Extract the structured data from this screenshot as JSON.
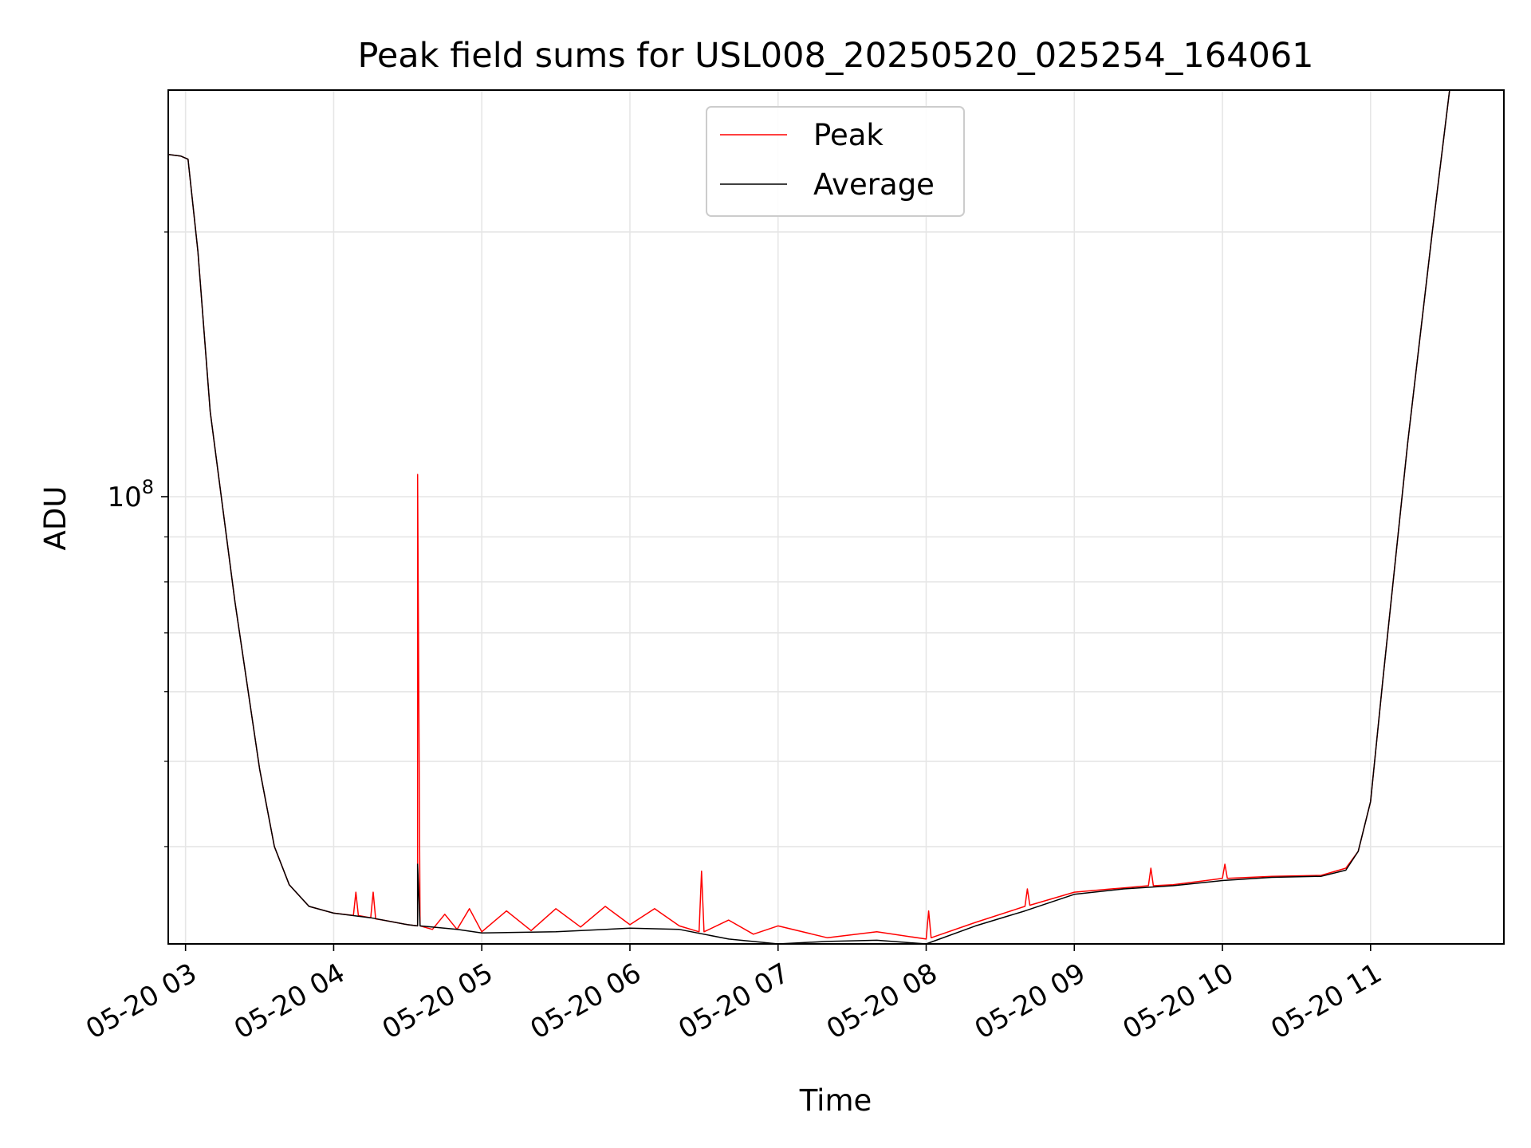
{
  "chart_data": {
    "type": "line",
    "title": "Peak field sums for USL008_20250520_025254_164061",
    "xlabel": "Time",
    "ylabel": "ADU",
    "y_scale": "log",
    "xlim": [
      "2025-05-20 02:53",
      "2025-05-20 11:54"
    ],
    "ylim": [
      31000000,
      290000000
    ],
    "x_ticks": [
      "05-20 03",
      "05-20 04",
      "05-20 05",
      "05-20 06",
      "05-20 07",
      "05-20 08",
      "05-20 09",
      "05-20 10",
      "05-20 11"
    ],
    "y_ticks": [
      {
        "value": 100000000,
        "base": "10",
        "exponent": "8"
      }
    ],
    "y_minor_ticks": [
      40000000,
      50000000,
      60000000,
      70000000,
      80000000,
      90000000,
      200000000
    ],
    "grid": true,
    "legend_position": "upper center",
    "series": [
      {
        "name": "Peak",
        "color": "#ff0000",
        "points": [
          [
            "2025-05-20 02:53",
            245000000.0
          ],
          [
            "2025-05-20 02:58",
            244000000.0
          ],
          [
            "2025-05-20 03:01",
            242000000.0
          ],
          [
            "2025-05-20 03:05",
            190000000.0
          ],
          [
            "2025-05-20 03:10",
            125000000.0
          ],
          [
            "2025-05-20 03:20",
            76000000.0
          ],
          [
            "2025-05-20 03:30",
            49000000.0
          ],
          [
            "2025-05-20 03:36",
            40000000.0
          ],
          [
            "2025-05-20 03:42",
            36200000.0
          ],
          [
            "2025-05-20 03:50",
            34200000.0
          ],
          [
            "2025-05-20 04:00",
            33600000.0
          ],
          [
            "2025-05-20 04:08",
            33400000.0
          ],
          [
            "2025-05-20 04:09",
            35500000.0
          ],
          [
            "2025-05-20 04:10",
            33400000.0
          ],
          [
            "2025-05-20 04:15",
            33200000.0
          ],
          [
            "2025-05-20 04:16",
            35500000.0
          ],
          [
            "2025-05-20 04:17",
            33100000.0
          ],
          [
            "2025-05-20 04:20",
            33000000.0
          ],
          [
            "2025-05-20 04:25",
            32800000.0
          ],
          [
            "2025-05-20 04:30",
            32600000.0
          ],
          [
            "2025-05-20 04:34",
            32500000.0
          ],
          [
            "2025-05-20 04:34",
            106000000.0
          ],
          [
            "2025-05-20 04:35",
            32500000.0
          ],
          [
            "2025-05-20 04:40",
            32200000.0
          ],
          [
            "2025-05-20 04:45",
            33500000.0
          ],
          [
            "2025-05-20 04:50",
            32200000.0
          ],
          [
            "2025-05-20 04:55",
            34000000.0
          ],
          [
            "2025-05-20 05:00",
            32000000.0
          ],
          [
            "2025-05-20 05:10",
            33800000.0
          ],
          [
            "2025-05-20 05:20",
            32100000.0
          ],
          [
            "2025-05-20 05:30",
            34000000.0
          ],
          [
            "2025-05-20 05:40",
            32400000.0
          ],
          [
            "2025-05-20 05:50",
            34200000.0
          ],
          [
            "2025-05-20 06:00",
            32600000.0
          ],
          [
            "2025-05-20 06:10",
            34000000.0
          ],
          [
            "2025-05-20 06:20",
            32500000.0
          ],
          [
            "2025-05-20 06:28",
            32000000.0
          ],
          [
            "2025-05-20 06:29",
            37500000.0
          ],
          [
            "2025-05-20 06:30",
            32000000.0
          ],
          [
            "2025-05-20 06:40",
            33000000.0
          ],
          [
            "2025-05-20 06:50",
            31800000.0
          ],
          [
            "2025-05-20 07:00",
            32500000.0
          ],
          [
            "2025-05-20 07:20",
            31500000.0
          ],
          [
            "2025-05-20 07:40",
            32000000.0
          ],
          [
            "2025-05-20 08:00",
            31400000.0
          ],
          [
            "2025-05-20 08:01",
            33800000.0
          ],
          [
            "2025-05-20 08:02",
            31500000.0
          ],
          [
            "2025-05-20 08:20",
            32800000.0
          ],
          [
            "2025-05-20 08:40",
            34200000.0
          ],
          [
            "2025-05-20 08:41",
            35800000.0
          ],
          [
            "2025-05-20 08:42",
            34300000.0
          ],
          [
            "2025-05-20 09:00",
            35500000.0
          ],
          [
            "2025-05-20 09:20",
            35900000.0
          ],
          [
            "2025-05-20 09:30",
            36100000.0
          ],
          [
            "2025-05-20 09:31",
            37800000.0
          ],
          [
            "2025-05-20 09:32",
            36100000.0
          ],
          [
            "2025-05-20 09:40",
            36200000.0
          ],
          [
            "2025-05-20 10:00",
            36800000.0
          ],
          [
            "2025-05-20 10:01",
            38200000.0
          ],
          [
            "2025-05-20 10:02",
            36800000.0
          ],
          [
            "2025-05-20 10:20",
            37000000.0
          ],
          [
            "2025-05-20 10:40",
            37100000.0
          ],
          [
            "2025-05-20 10:50",
            37800000.0
          ],
          [
            "2025-05-20 10:55",
            39500000.0
          ],
          [
            "2025-05-20 11:00",
            45000000.0
          ],
          [
            "2025-05-20 11:05",
            62000000.0
          ],
          [
            "2025-05-20 11:15",
            115000000.0
          ],
          [
            "2025-05-20 11:25",
            200000000.0
          ],
          [
            "2025-05-20 11:32",
            290000000.0
          ]
        ]
      },
      {
        "name": "Average",
        "color": "#000000",
        "points": [
          [
            "2025-05-20 02:53",
            245000000.0
          ],
          [
            "2025-05-20 02:58",
            244000000.0
          ],
          [
            "2025-05-20 03:01",
            242000000.0
          ],
          [
            "2025-05-20 03:05",
            190000000.0
          ],
          [
            "2025-05-20 03:10",
            125000000.0
          ],
          [
            "2025-05-20 03:20",
            76000000.0
          ],
          [
            "2025-05-20 03:30",
            49000000.0
          ],
          [
            "2025-05-20 03:36",
            40000000.0
          ],
          [
            "2025-05-20 03:42",
            36200000.0
          ],
          [
            "2025-05-20 03:50",
            34200000.0
          ],
          [
            "2025-05-20 04:00",
            33600000.0
          ],
          [
            "2025-05-20 04:15",
            33200000.0
          ],
          [
            "2025-05-20 04:30",
            32600000.0
          ],
          [
            "2025-05-20 04:34",
            32500000.0
          ],
          [
            "2025-05-20 04:34",
            38200000.0
          ],
          [
            "2025-05-20 04:35",
            32500000.0
          ],
          [
            "2025-05-20 04:50",
            32200000.0
          ],
          [
            "2025-05-20 05:00",
            31900000.0
          ],
          [
            "2025-05-20 05:30",
            32000000.0
          ],
          [
            "2025-05-20 06:00",
            32300000.0
          ],
          [
            "2025-05-20 06:20",
            32200000.0
          ],
          [
            "2025-05-20 06:40",
            31400000.0
          ],
          [
            "2025-05-20 07:00",
            31000000.0
          ],
          [
            "2025-05-20 07:20",
            31200000.0
          ],
          [
            "2025-05-20 07:40",
            31300000.0
          ],
          [
            "2025-05-20 08:00",
            31000000.0
          ],
          [
            "2025-05-20 08:20",
            32500000.0
          ],
          [
            "2025-05-20 08:40",
            33800000.0
          ],
          [
            "2025-05-20 09:00",
            35300000.0
          ],
          [
            "2025-05-20 09:20",
            35800000.0
          ],
          [
            "2025-05-20 09:40",
            36100000.0
          ],
          [
            "2025-05-20 10:00",
            36600000.0
          ],
          [
            "2025-05-20 10:20",
            36900000.0
          ],
          [
            "2025-05-20 10:40",
            37000000.0
          ],
          [
            "2025-05-20 10:50",
            37600000.0
          ],
          [
            "2025-05-20 10:55",
            39500000.0
          ],
          [
            "2025-05-20 11:00",
            45000000.0
          ],
          [
            "2025-05-20 11:05",
            62000000.0
          ],
          [
            "2025-05-20 11:15",
            115000000.0
          ],
          [
            "2025-05-20 11:25",
            200000000.0
          ],
          [
            "2025-05-20 11:32",
            290000000.0
          ]
        ]
      }
    ]
  }
}
